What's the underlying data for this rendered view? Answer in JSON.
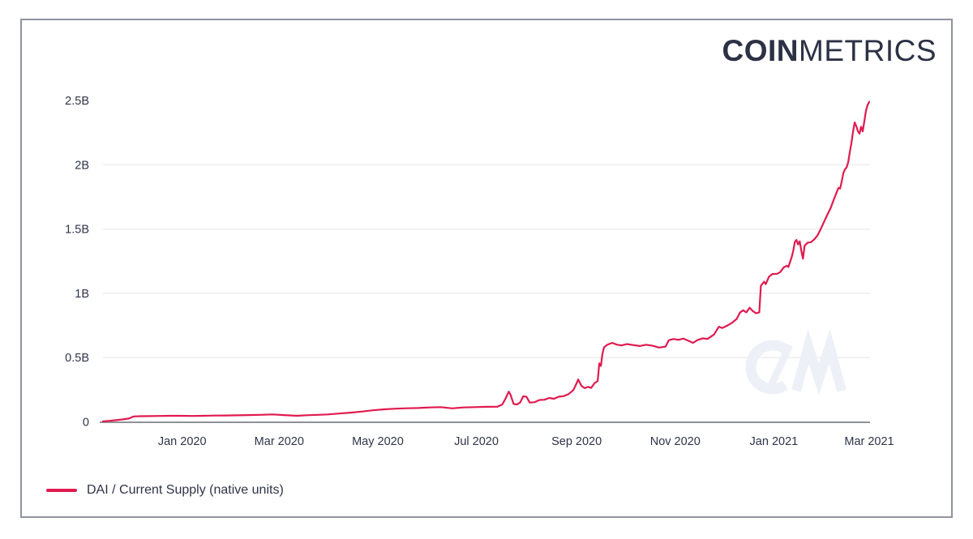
{
  "window": {
    "background_color": "#ffffff",
    "frame_border_color": "#9094a0"
  },
  "logo": {
    "bold_part": "COIN",
    "light_part": "METRICS",
    "color": "#2c3145"
  },
  "legend": {
    "swatch_color": "#e01a4f",
    "label": "DAI / Current Supply (native units)"
  },
  "watermark": {
    "text": "CM",
    "color": "#edf0f7"
  },
  "colors": {
    "line": "#e01a4f",
    "axis_line": "#8f9199",
    "gridline": "#ededf1",
    "tick_text": "#2f3349"
  },
  "chart_data": {
    "type": "line",
    "title": "",
    "xlabel": "",
    "ylabel": "",
    "grid": "horizontal",
    "legend_position": "bottom-left",
    "x_axis": {
      "range": [
        "2019-11-13",
        "2021-03-01"
      ],
      "ticks": [
        "Jan 2020",
        "Mar 2020",
        "May 2020",
        "Jul 2020",
        "Sep 2020",
        "Nov 2020",
        "Jan 2021",
        "Mar 2021"
      ]
    },
    "y_axis": {
      "range": [
        0,
        2.5
      ],
      "unit": "B (billions of native units)",
      "ticks": [
        {
          "value": 0,
          "label": "0",
          "grid": false
        },
        {
          "value": 0.5,
          "label": "0.5B",
          "grid": true
        },
        {
          "value": 1,
          "label": "1B",
          "grid": true
        },
        {
          "value": 1.5,
          "label": "1.5B",
          "grid": true
        },
        {
          "value": 2,
          "label": "2B",
          "grid": true
        },
        {
          "value": 2.5,
          "label": "2.5B",
          "grid": false
        }
      ]
    },
    "series": [
      {
        "name": "DAI / Current Supply (native units)",
        "color": "#e01a4f",
        "points": [
          [
            "2019-11-13",
            0.004
          ],
          [
            "2019-11-17",
            0.008
          ],
          [
            "2019-11-21",
            0.013
          ],
          [
            "2019-11-25",
            0.019
          ],
          [
            "2019-11-29",
            0.026
          ],
          [
            "2019-12-02",
            0.042
          ],
          [
            "2019-12-06",
            0.044
          ],
          [
            "2019-12-12",
            0.045
          ],
          [
            "2019-12-18",
            0.046
          ],
          [
            "2019-12-24",
            0.047
          ],
          [
            "2019-12-31",
            0.047
          ],
          [
            "2020-01-07",
            0.046
          ],
          [
            "2020-01-14",
            0.047
          ],
          [
            "2020-01-21",
            0.049
          ],
          [
            "2020-01-28",
            0.05
          ],
          [
            "2020-02-04",
            0.051
          ],
          [
            "2020-02-11",
            0.053
          ],
          [
            "2020-02-18",
            0.055
          ],
          [
            "2020-02-26",
            0.058
          ],
          [
            "2020-03-04",
            0.053
          ],
          [
            "2020-03-12",
            0.047
          ],
          [
            "2020-03-18",
            0.052
          ],
          [
            "2020-03-25",
            0.055
          ],
          [
            "2020-03-31",
            0.058
          ],
          [
            "2020-04-07",
            0.065
          ],
          [
            "2020-04-14",
            0.072
          ],
          [
            "2020-04-21",
            0.08
          ],
          [
            "2020-04-28",
            0.09
          ],
          [
            "2020-05-05",
            0.098
          ],
          [
            "2020-05-12",
            0.103
          ],
          [
            "2020-05-19",
            0.106
          ],
          [
            "2020-05-26",
            0.108
          ],
          [
            "2020-06-02",
            0.112
          ],
          [
            "2020-06-09",
            0.115
          ],
          [
            "2020-06-16",
            0.105
          ],
          [
            "2020-06-23",
            0.112
          ],
          [
            "2020-06-30",
            0.115
          ],
          [
            "2020-07-07",
            0.117
          ],
          [
            "2020-07-14",
            0.118
          ],
          [
            "2020-07-17",
            0.135
          ],
          [
            "2020-07-19",
            0.18
          ],
          [
            "2020-07-21",
            0.235
          ],
          [
            "2020-07-22",
            0.215
          ],
          [
            "2020-07-24",
            0.14
          ],
          [
            "2020-07-26",
            0.135
          ],
          [
            "2020-07-28",
            0.15
          ],
          [
            "2020-07-30",
            0.2
          ],
          [
            "2020-08-01",
            0.195
          ],
          [
            "2020-08-03",
            0.15
          ],
          [
            "2020-08-06",
            0.153
          ],
          [
            "2020-08-09",
            0.17
          ],
          [
            "2020-08-12",
            0.172
          ],
          [
            "2020-08-15",
            0.186
          ],
          [
            "2020-08-18",
            0.18
          ],
          [
            "2020-08-21",
            0.196
          ],
          [
            "2020-08-24",
            0.2
          ],
          [
            "2020-08-27",
            0.216
          ],
          [
            "2020-08-30",
            0.248
          ],
          [
            "2020-09-01",
            0.3
          ],
          [
            "2020-09-02",
            0.33
          ],
          [
            "2020-09-04",
            0.28
          ],
          [
            "2020-09-06",
            0.262
          ],
          [
            "2020-09-08",
            0.273
          ],
          [
            "2020-09-10",
            0.264
          ],
          [
            "2020-09-12",
            0.3
          ],
          [
            "2020-09-14",
            0.318
          ],
          [
            "2020-09-15",
            0.455
          ],
          [
            "2020-09-16",
            0.435
          ],
          [
            "2020-09-17",
            0.53
          ],
          [
            "2020-09-18",
            0.58
          ],
          [
            "2020-09-20",
            0.6
          ],
          [
            "2020-09-23",
            0.615
          ],
          [
            "2020-09-26",
            0.6
          ],
          [
            "2020-09-29",
            0.595
          ],
          [
            "2020-10-02",
            0.605
          ],
          [
            "2020-10-06",
            0.598
          ],
          [
            "2020-10-10",
            0.59
          ],
          [
            "2020-10-14",
            0.6
          ],
          [
            "2020-10-18",
            0.592
          ],
          [
            "2020-10-22",
            0.578
          ],
          [
            "2020-10-26",
            0.585
          ],
          [
            "2020-10-28",
            0.635
          ],
          [
            "2020-10-31",
            0.645
          ],
          [
            "2020-11-03",
            0.638
          ],
          [
            "2020-11-06",
            0.648
          ],
          [
            "2020-11-09",
            0.632
          ],
          [
            "2020-11-12",
            0.615
          ],
          [
            "2020-11-15",
            0.638
          ],
          [
            "2020-11-18",
            0.65
          ],
          [
            "2020-11-21",
            0.645
          ],
          [
            "2020-11-25",
            0.68
          ],
          [
            "2020-11-28",
            0.74
          ],
          [
            "2020-11-30",
            0.73
          ],
          [
            "2020-12-03",
            0.748
          ],
          [
            "2020-12-06",
            0.77
          ],
          [
            "2020-12-09",
            0.8
          ],
          [
            "2020-12-11",
            0.85
          ],
          [
            "2020-12-13",
            0.868
          ],
          [
            "2020-12-15",
            0.852
          ],
          [
            "2020-12-17",
            0.888
          ],
          [
            "2020-12-19",
            0.862
          ],
          [
            "2020-12-21",
            0.845
          ],
          [
            "2020-12-23",
            0.852
          ],
          [
            "2020-12-24",
            1.06
          ],
          [
            "2020-12-26",
            1.09
          ],
          [
            "2020-12-27",
            1.072
          ],
          [
            "2020-12-29",
            1.13
          ],
          [
            "2020-12-31",
            1.15
          ],
          [
            "2021-01-03",
            1.152
          ],
          [
            "2021-01-05",
            1.165
          ],
          [
            "2021-01-07",
            1.2
          ],
          [
            "2021-01-09",
            1.215
          ],
          [
            "2021-01-10",
            1.205
          ],
          [
            "2021-01-12",
            1.28
          ],
          [
            "2021-01-13",
            1.33
          ],
          [
            "2021-01-14",
            1.4
          ],
          [
            "2021-01-15",
            1.415
          ],
          [
            "2021-01-16",
            1.38
          ],
          [
            "2021-01-17",
            1.405
          ],
          [
            "2021-01-18",
            1.33
          ],
          [
            "2021-01-19",
            1.27
          ],
          [
            "2021-01-20",
            1.37
          ],
          [
            "2021-01-22",
            1.395
          ],
          [
            "2021-01-24",
            1.398
          ],
          [
            "2021-01-26",
            1.42
          ],
          [
            "2021-01-28",
            1.45
          ],
          [
            "2021-01-30",
            1.5
          ],
          [
            "2021-02-01",
            1.555
          ],
          [
            "2021-02-03",
            1.61
          ],
          [
            "2021-02-05",
            1.66
          ],
          [
            "2021-02-07",
            1.725
          ],
          [
            "2021-02-09",
            1.79
          ],
          [
            "2021-02-10",
            1.82
          ],
          [
            "2021-02-11",
            1.815
          ],
          [
            "2021-02-12",
            1.87
          ],
          [
            "2021-02-13",
            1.935
          ],
          [
            "2021-02-14",
            1.965
          ],
          [
            "2021-02-15",
            1.98
          ],
          [
            "2021-02-16",
            2.02
          ],
          [
            "2021-02-17",
            2.1
          ],
          [
            "2021-02-18",
            2.17
          ],
          [
            "2021-02-19",
            2.26
          ],
          [
            "2021-02-20",
            2.33
          ],
          [
            "2021-02-21",
            2.3
          ],
          [
            "2021-02-22",
            2.262
          ],
          [
            "2021-02-23",
            2.242
          ],
          [
            "2021-02-24",
            2.296
          ],
          [
            "2021-02-25",
            2.26
          ],
          [
            "2021-02-26",
            2.34
          ],
          [
            "2021-02-27",
            2.42
          ],
          [
            "2021-02-28",
            2.465
          ],
          [
            "2021-03-01",
            2.49
          ]
        ]
      }
    ]
  }
}
